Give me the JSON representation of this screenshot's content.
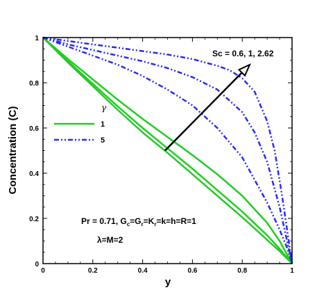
{
  "chart_data": {
    "type": "line",
    "xlabel": "y",
    "ylabel": "Concentration (C)",
    "xlim": [
      0,
      1
    ],
    "ylim": [
      0,
      1
    ],
    "xticks": [
      "0",
      "0.2",
      "0.4",
      "0.6",
      "0.8",
      "1"
    ],
    "yticks": [
      "0",
      "0.2",
      "0.4",
      "0.6",
      "0.8",
      "1"
    ],
    "grid": false,
    "legend": {
      "title": "γ",
      "placement": "left",
      "entries": [
        {
          "label": "1",
          "color": "#22cc22",
          "style": "solid"
        },
        {
          "label": "5",
          "color": "#2a2aee",
          "style": "dash-dot-dot"
        }
      ]
    },
    "annotations": {
      "sc": "Sc = 0.6, 1, 2.62",
      "params": "Pr = 0.71, G",
      "params_sub1": "c",
      "params_mid1": "=G",
      "params_sub2": "r",
      "params_mid2": "=K",
      "params_sub3": "r",
      "params_tail": "=k=h=R=1",
      "lambda": "λ=M=2"
    },
    "series": [
      {
        "group": "1",
        "style": "solid",
        "x": [
          0,
          0.1,
          0.2,
          0.3,
          0.4,
          0.5,
          0.6,
          0.7,
          0.8,
          0.9,
          0.95,
          1
        ],
        "y": [
          1,
          0.89,
          0.785,
          0.68,
          0.58,
          0.49,
          0.395,
          0.3,
          0.205,
          0.105,
          0.055,
          0
        ]
      },
      {
        "group": "1",
        "style": "solid",
        "x": [
          0,
          0.1,
          0.2,
          0.3,
          0.4,
          0.5,
          0.6,
          0.7,
          0.8,
          0.9,
          0.95,
          1
        ],
        "y": [
          1,
          0.895,
          0.795,
          0.695,
          0.6,
          0.51,
          0.42,
          0.325,
          0.23,
          0.125,
          0.065,
          0
        ]
      },
      {
        "group": "1",
        "style": "solid",
        "x": [
          0,
          0.1,
          0.2,
          0.3,
          0.4,
          0.5,
          0.6,
          0.7,
          0.8,
          0.9,
          0.95,
          1
        ],
        "y": [
          1,
          0.905,
          0.815,
          0.725,
          0.64,
          0.56,
          0.48,
          0.395,
          0.3,
          0.18,
          0.1,
          0
        ]
      },
      {
        "group": "5",
        "style": "dash-dot-dot",
        "x": [
          0,
          0.1,
          0.2,
          0.3,
          0.4,
          0.5,
          0.6,
          0.7,
          0.8,
          0.9,
          0.95,
          0.98,
          1
        ],
        "y": [
          1,
          0.96,
          0.92,
          0.88,
          0.83,
          0.77,
          0.7,
          0.6,
          0.47,
          0.27,
          0.15,
          0.07,
          0
        ]
      },
      {
        "group": "5",
        "style": "dash-dot-dot",
        "x": [
          0,
          0.1,
          0.2,
          0.3,
          0.4,
          0.5,
          0.6,
          0.7,
          0.8,
          0.85,
          0.9,
          0.95,
          0.98,
          1
        ],
        "y": [
          1,
          0.97,
          0.945,
          0.92,
          0.895,
          0.865,
          0.825,
          0.77,
          0.67,
          0.58,
          0.45,
          0.25,
          0.1,
          0
        ]
      },
      {
        "group": "5",
        "style": "dash-dot-dot",
        "x": [
          0,
          0.1,
          0.2,
          0.3,
          0.4,
          0.5,
          0.6,
          0.7,
          0.75,
          0.8,
          0.85,
          0.9,
          0.93,
          0.96,
          0.98,
          1
        ],
        "y": [
          1,
          0.985,
          0.97,
          0.955,
          0.94,
          0.925,
          0.905,
          0.875,
          0.855,
          0.82,
          0.76,
          0.63,
          0.5,
          0.3,
          0.15,
          0
        ]
      }
    ],
    "arrow": {
      "from": [
        0.49,
        0.5
      ],
      "to": [
        0.83,
        0.88
      ],
      "color": "#000000"
    }
  }
}
